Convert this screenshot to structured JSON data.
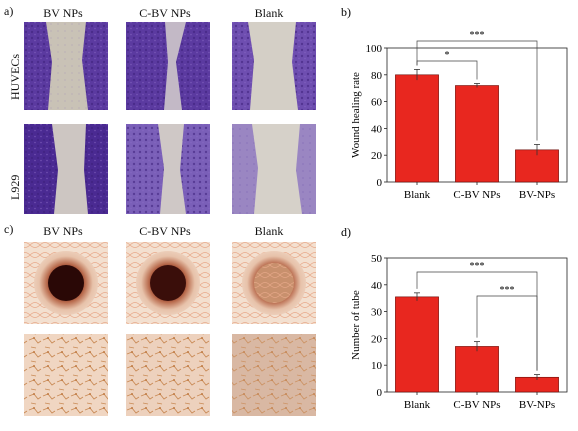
{
  "panel_a": {
    "label": "a)",
    "columns": [
      "BV NPs",
      "C-BV NPs",
      "Blank"
    ],
    "rows": [
      "HUVECs",
      "L929"
    ]
  },
  "panel_c": {
    "label": "c)",
    "columns": [
      "BV NPs",
      "C-BV NPs",
      "Blank"
    ]
  },
  "colors": {
    "bar": "#e8271f",
    "stain": "#5b3aa0",
    "background_cell": "#c9c2b6"
  },
  "chart_data": [
    {
      "panel": "b)",
      "type": "bar",
      "categories": [
        "Blank",
        "C-BV NPs",
        "BV-NPs"
      ],
      "values": [
        80,
        72,
        24
      ],
      "errors": [
        4,
        1.5,
        4
      ],
      "ylabel": "Wound healing rate",
      "xlabel": "",
      "ylim": [
        0,
        100
      ],
      "yticks": [
        0,
        20,
        40,
        60,
        80,
        100
      ],
      "significance": [
        {
          "from": 0,
          "to": 1,
          "label": "*"
        },
        {
          "from": 0,
          "to": 2,
          "label": "***"
        }
      ]
    },
    {
      "panel": "d)",
      "type": "bar",
      "categories": [
        "Blank",
        "C-BV NPs",
        "BV-NPs"
      ],
      "values": [
        35.5,
        17,
        5.5
      ],
      "errors": [
        1.5,
        1.8,
        1
      ],
      "ylabel": "Number of tube",
      "xlabel": "",
      "ylim": [
        0,
        50
      ],
      "yticks": [
        0,
        10,
        20,
        30,
        40,
        50
      ],
      "significance": [
        {
          "from": 0,
          "to": 2,
          "label": "***"
        },
        {
          "from": 1,
          "to": 2,
          "label": "***"
        }
      ]
    }
  ]
}
